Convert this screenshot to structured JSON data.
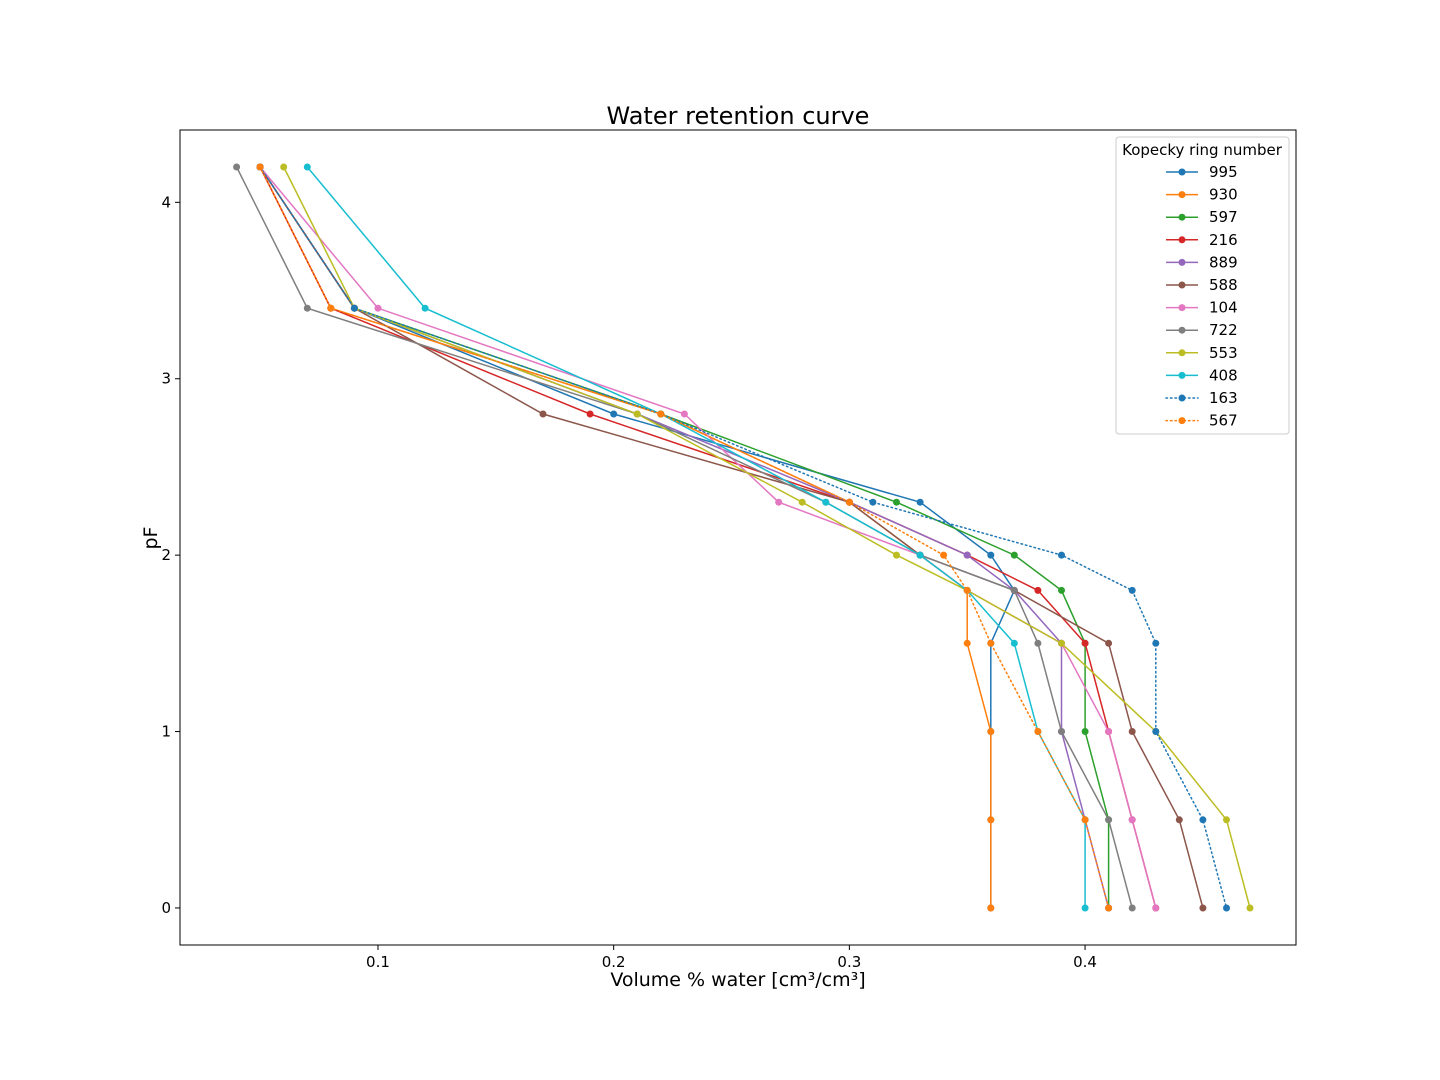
{
  "chart_data": {
    "type": "line",
    "title": "Water retention curve",
    "xlabel": "Volume % water [cm³/cm³]",
    "ylabel": "pF",
    "xlim": [
      0.016,
      0.4895
    ],
    "ylim": [
      -0.21,
      4.41
    ],
    "xticks": [
      0.1,
      0.2,
      0.3,
      0.4
    ],
    "yticks": [
      0,
      1,
      2,
      3,
      4
    ],
    "grid": false,
    "legend": {
      "title": "Kopecky ring number",
      "placement": "top-right"
    },
    "pF": [
      4.2,
      3.4,
      2.8,
      2.3,
      2.0,
      1.8,
      1.5,
      1.0,
      0.5,
      0.0
    ],
    "series": [
      {
        "name": "995",
        "color": "#1f77b4",
        "style": "solid",
        "x": [
          0.05,
          0.09,
          0.2,
          0.33,
          0.36,
          0.37,
          0.36,
          0.36,
          0.36,
          0.36
        ]
      },
      {
        "name": "930",
        "color": "#ff7f0e",
        "style": "solid",
        "x": [
          0.05,
          0.08,
          0.22,
          0.3,
          0.33,
          0.35,
          0.35,
          0.36,
          0.36,
          0.36
        ]
      },
      {
        "name": "597",
        "color": "#2ca02c",
        "style": "solid",
        "x": [
          0.05,
          0.09,
          0.22,
          0.32,
          0.37,
          0.39,
          0.4,
          0.4,
          0.41,
          0.41
        ]
      },
      {
        "name": "216",
        "color": "#d62728",
        "style": "solid",
        "x": [
          0.05,
          0.08,
          0.19,
          0.3,
          0.35,
          0.38,
          0.4,
          0.41,
          0.42,
          0.43
        ]
      },
      {
        "name": "889",
        "color": "#9467bd",
        "style": "solid",
        "x": [
          0.05,
          0.09,
          0.21,
          0.3,
          0.35,
          0.37,
          0.39,
          0.39,
          0.4,
          0.41
        ]
      },
      {
        "name": "588",
        "color": "#8c564b",
        "style": "solid",
        "x": [
          0.05,
          0.09,
          0.17,
          0.3,
          0.33,
          0.37,
          0.41,
          0.42,
          0.44,
          0.45
        ]
      },
      {
        "name": "104",
        "color": "#e377c2",
        "style": "solid",
        "x": [
          0.05,
          0.1,
          0.23,
          0.27,
          0.33,
          0.35,
          0.39,
          0.41,
          0.42,
          0.43
        ]
      },
      {
        "name": "722",
        "color": "#7f7f7f",
        "style": "solid",
        "x": [
          0.04,
          0.07,
          0.21,
          0.29,
          0.33,
          0.37,
          0.38,
          0.39,
          0.41,
          0.42
        ]
      },
      {
        "name": "553",
        "color": "#bcbd22",
        "style": "solid",
        "x": [
          0.06,
          0.09,
          0.21,
          0.28,
          0.32,
          0.35,
          0.39,
          0.43,
          0.46,
          0.47
        ]
      },
      {
        "name": "408",
        "color": "#17becf",
        "style": "solid",
        "x": [
          0.07,
          0.12,
          0.22,
          0.29,
          0.33,
          0.35,
          0.37,
          0.38,
          0.4,
          0.4
        ]
      },
      {
        "name": "163",
        "color": "#1f77b4",
        "style": "dotted",
        "x": [
          0.05,
          0.09,
          0.22,
          0.31,
          0.39,
          0.42,
          0.43,
          0.43,
          0.45,
          0.46
        ]
      },
      {
        "name": "567",
        "color": "#ff7f0e",
        "style": "dotted",
        "x": [
          0.05,
          0.08,
          0.22,
          0.3,
          0.34,
          0.35,
          0.36,
          0.38,
          0.4,
          0.41
        ]
      }
    ]
  }
}
